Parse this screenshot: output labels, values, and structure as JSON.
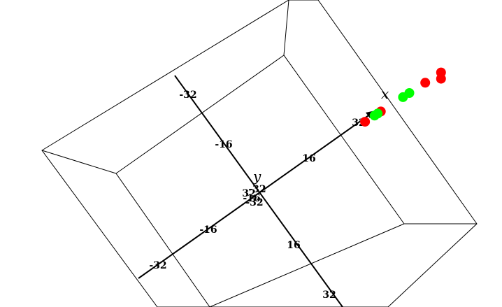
{
  "chart_data": {
    "type": "scatter",
    "axes": {
      "x": {
        "label": "x",
        "ticks": [
          "-32",
          "-16",
          "16",
          "32"
        ]
      },
      "y": {
        "label": "y",
        "ticks": [
          "-32",
          "-16",
          "16",
          "32"
        ]
      }
    },
    "series": [
      {
        "color": "#ff0000",
        "points": [
          [
            34,
            0
          ],
          [
            39,
            0
          ],
          [
            53,
            0
          ],
          [
            58,
            0
          ],
          [
            58,
            0
          ]
        ]
      },
      {
        "color": "#00ff00",
        "points": [
          [
            37,
            0
          ],
          [
            38,
            0
          ],
          [
            46,
            0
          ],
          [
            48,
            0
          ]
        ]
      }
    ],
    "grid": false
  }
}
